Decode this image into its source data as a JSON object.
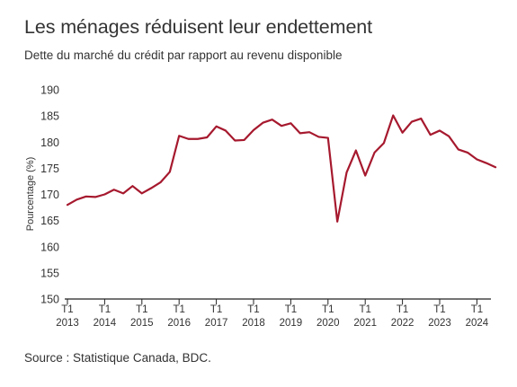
{
  "header": {
    "title": "Les ménages réduisent leur endettement",
    "subtitle": "Dette du marché du crédit par rapport au revenu disponible"
  },
  "footer": {
    "source": "Source : Statistique Canada, BDC."
  },
  "colors": {
    "line": "#a6192e",
    "axis": "#222222",
    "text": "#333333"
  },
  "chart_data": {
    "type": "line",
    "title": "Les ménages réduisent leur endettement",
    "subtitle": "Dette du marché du crédit par rapport au revenu disponible",
    "xlabel": "",
    "ylabel": "Pourcentage (%)",
    "ylim": [
      150,
      190
    ],
    "yticks": [
      150,
      155,
      160,
      165,
      170,
      175,
      180,
      185,
      190
    ],
    "grid": false,
    "legend": "none",
    "xticks": [
      {
        "quarter": "T1",
        "year": "2013"
      },
      {
        "quarter": "T1",
        "year": "2014"
      },
      {
        "quarter": "T1",
        "year": "2015"
      },
      {
        "quarter": "T1",
        "year": "2016"
      },
      {
        "quarter": "T1",
        "year": "2017"
      },
      {
        "quarter": "T1",
        "year": "2018"
      },
      {
        "quarter": "T1",
        "year": "2019"
      },
      {
        "quarter": "T1",
        "year": "2020"
      },
      {
        "quarter": "T1",
        "year": "2021"
      },
      {
        "quarter": "T1",
        "year": "2022"
      },
      {
        "quarter": "T1",
        "year": "2023"
      },
      {
        "quarter": "T1",
        "year": "2024"
      }
    ],
    "x": [
      "2013 T1",
      "2013 T2",
      "2013 T3",
      "2013 T4",
      "2014 T1",
      "2014 T2",
      "2014 T3",
      "2014 T4",
      "2015 T1",
      "2015 T2",
      "2015 T3",
      "2015 T4",
      "2016 T1",
      "2016 T2",
      "2016 T3",
      "2016 T4",
      "2017 T1",
      "2017 T2",
      "2017 T3",
      "2017 T4",
      "2018 T1",
      "2018 T2",
      "2018 T3",
      "2018 T4",
      "2019 T1",
      "2019 T2",
      "2019 T3",
      "2019 T4",
      "2020 T1",
      "2020 T2",
      "2020 T3",
      "2020 T4",
      "2021 T1",
      "2021 T2",
      "2021 T3",
      "2021 T4",
      "2022 T1",
      "2022 T2",
      "2022 T3",
      "2022 T4",
      "2023 T1",
      "2023 T2",
      "2023 T3",
      "2023 T4",
      "2024 T1",
      "2024 T2",
      "2024 T3"
    ],
    "series": [
      {
        "values": [
          168.0,
          169.0,
          169.6,
          169.5,
          170.0,
          170.9,
          170.2,
          171.6,
          170.2,
          171.2,
          172.3,
          174.3,
          181.2,
          180.6,
          180.6,
          180.9,
          183.0,
          182.2,
          180.3,
          180.4,
          182.3,
          183.7,
          184.3,
          183.1,
          183.6,
          181.7,
          181.9,
          181.0,
          180.8,
          164.8,
          174.2,
          178.4,
          173.6,
          178.0,
          179.8,
          185.1,
          181.8,
          183.9,
          184.5,
          181.4,
          182.2,
          181.1,
          178.6,
          178.0,
          176.7,
          176.0,
          175.2
        ]
      }
    ]
  }
}
